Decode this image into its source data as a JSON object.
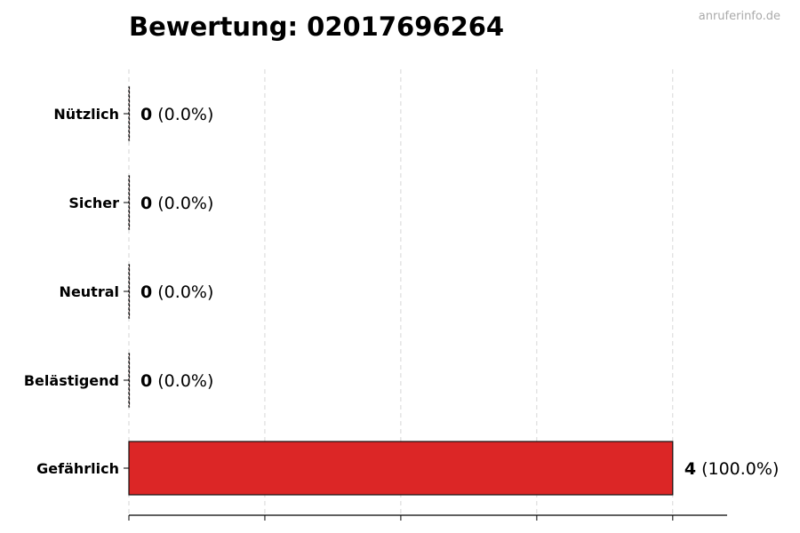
{
  "watermark": "anruferinfo.de",
  "chart_data": {
    "type": "bar",
    "orientation": "horizontal",
    "title": "Bewertung: 02017696264",
    "categories": [
      "Nützlich",
      "Sicher",
      "Neutral",
      "Belästigend",
      "Gefährlich"
    ],
    "values": [
      0,
      0,
      0,
      0,
      4
    ],
    "value_labels": [
      "0",
      "0",
      "0",
      "0",
      "4"
    ],
    "percent_labels": [
      "(0.0%)",
      "(0.0%)",
      "(0.0%)",
      "(0.0%)",
      "(100.0%)"
    ],
    "bar_color": "#dc2626",
    "xlim": [
      0,
      4.4
    ],
    "xticks": [
      0,
      1,
      2,
      3,
      4
    ],
    "xtick_labels_shown": false,
    "grid": "vertical dashed",
    "xlabel": "",
    "ylabel": ""
  }
}
